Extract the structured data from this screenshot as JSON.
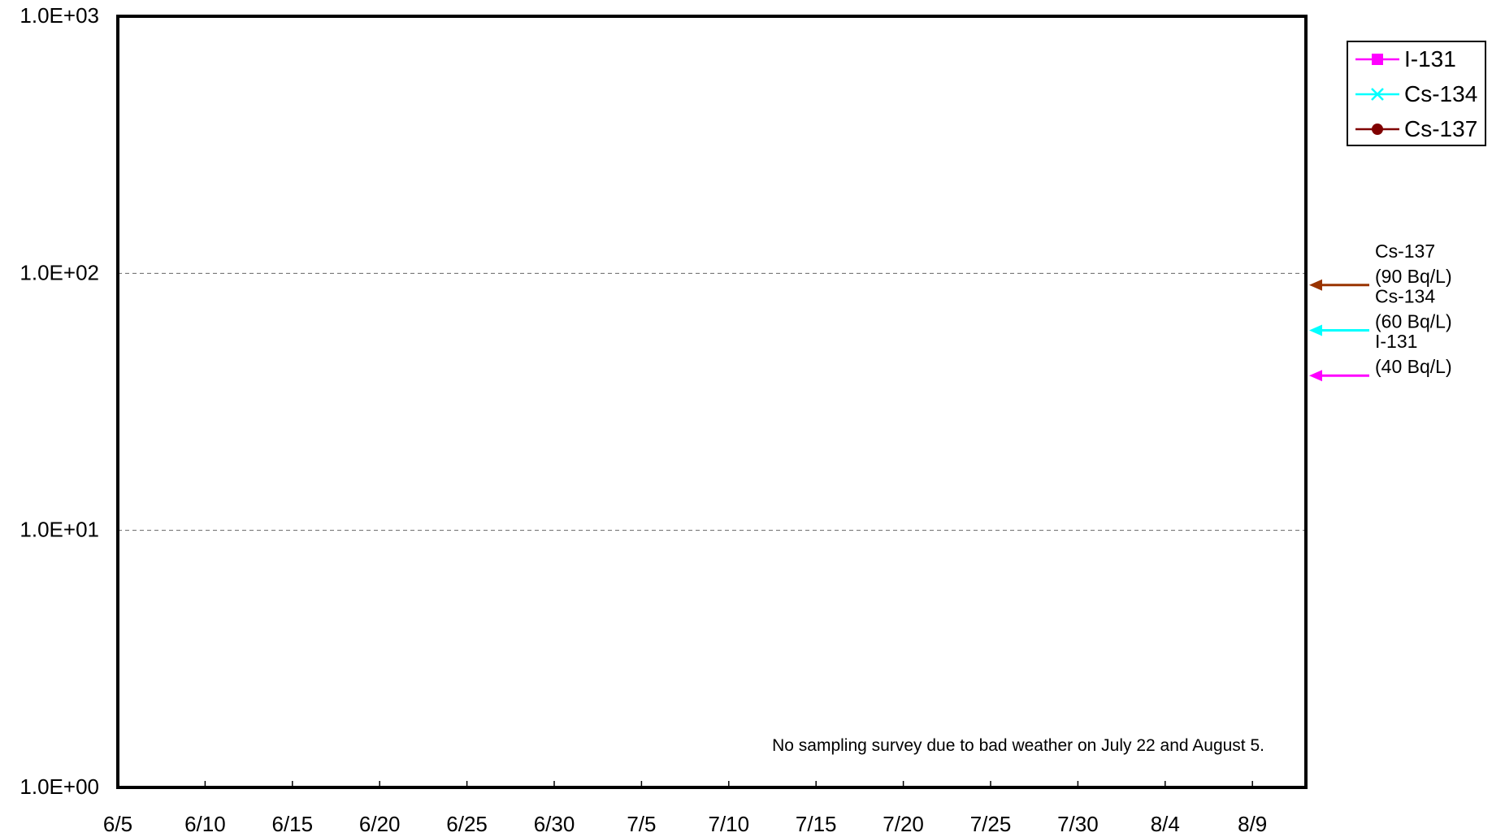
{
  "chart_data": {
    "type": "line",
    "title": "",
    "xlabel": "",
    "ylabel": "",
    "y_scale": "log",
    "ylim": [
      1,
      1000
    ],
    "y_ticks": [
      {
        "value": 1000,
        "label": "1.0E+03"
      },
      {
        "value": 100,
        "label": "1.0E+02"
      },
      {
        "value": 10,
        "label": "1.0E+01"
      },
      {
        "value": 1,
        "label": "1.0E+00"
      }
    ],
    "x_tick_labels": [
      "6/5",
      "6/10",
      "6/15",
      "6/20",
      "6/25",
      "6/30",
      "7/5",
      "7/10",
      "7/15",
      "7/20",
      "7/25",
      "7/30",
      "8/4",
      "8/9"
    ],
    "grid": "horizontal dashed at 1.0E+01 and 1.0E+02",
    "legend_position": "top-right outside plot",
    "series": [
      {
        "name": "I-131",
        "color": "#ff00ff",
        "marker": "square",
        "values": []
      },
      {
        "name": "Cs-134",
        "color": "#00ffff",
        "marker": "x",
        "values": []
      },
      {
        "name": "Cs-137",
        "color": "#800000",
        "marker": "circle",
        "values": []
      }
    ],
    "limit_markers": [
      {
        "nuclide": "Cs-137",
        "value": 90,
        "label": "(90  Bq/L)",
        "color": "#993300"
      },
      {
        "nuclide": "Cs-134",
        "value": 60,
        "label": "(60  Bq/L)",
        "color": "#00ffff"
      },
      {
        "nuclide": "I-131",
        "value": 40,
        "label": "(40  Bq/L)",
        "color": "#ff00ff"
      }
    ],
    "annotation": "No sampling survey due to bad weather on July  22 and August 5."
  }
}
